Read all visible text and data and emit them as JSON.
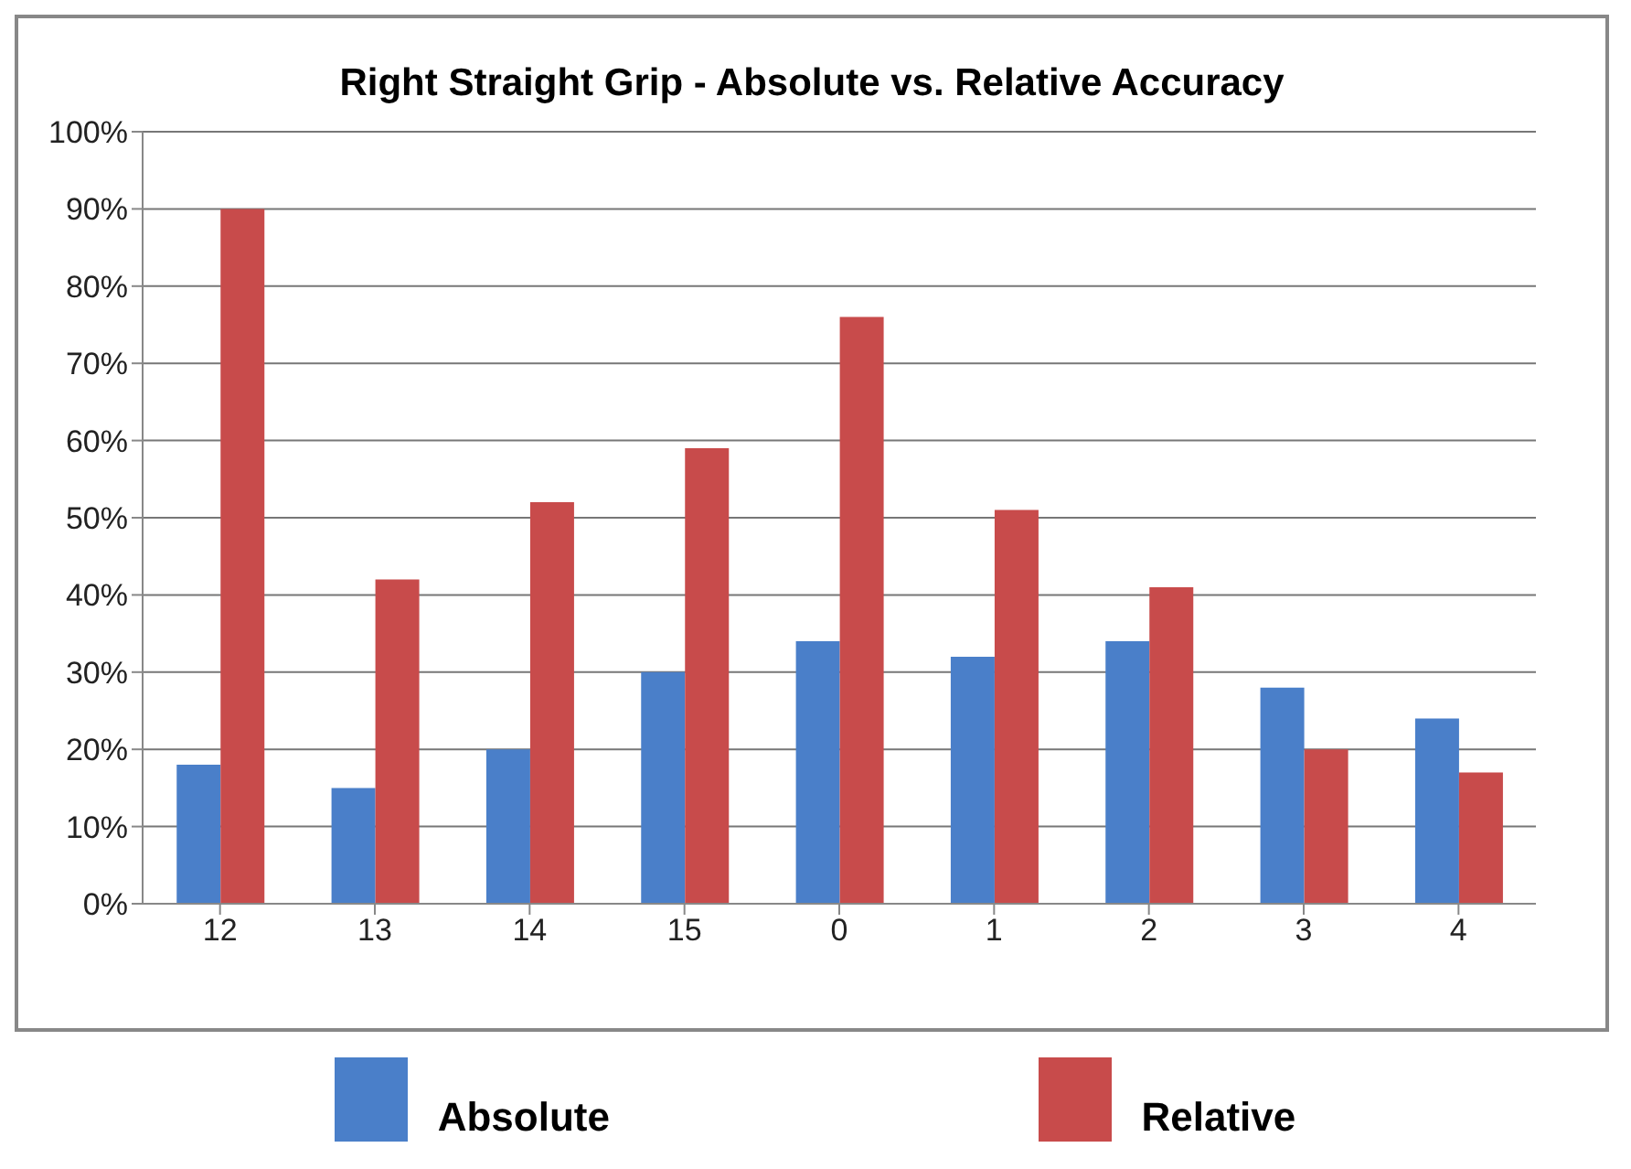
{
  "chart_data": {
    "type": "bar",
    "title": "Right Straight  Grip  -  Absolute vs. Relative Accuracy",
    "categories": [
      "12",
      "13",
      "14",
      "15",
      "0",
      "1",
      "2",
      "3",
      "4"
    ],
    "series": [
      {
        "name": "Absolute",
        "color": "#4a7fc9",
        "values": [
          18,
          15,
          20,
          30,
          34,
          32,
          34,
          28,
          24
        ]
      },
      {
        "name": "Relative",
        "color": "#c84b4b",
        "values": [
          90,
          42,
          52,
          59,
          76,
          51,
          41,
          20,
          17
        ]
      }
    ],
    "ylim": [
      0,
      100
    ],
    "yticks": [
      {
        "value": 0,
        "label": "0%"
      },
      {
        "value": 10,
        "label": "10%"
      },
      {
        "value": 20,
        "label": "20%"
      },
      {
        "value": 30,
        "label": "30%"
      },
      {
        "value": 40,
        "label": "40%"
      },
      {
        "value": 50,
        "label": "50%"
      },
      {
        "value": 60,
        "label": "60%"
      },
      {
        "value": 70,
        "label": "70%"
      },
      {
        "value": 80,
        "label": "80%"
      },
      {
        "value": 90,
        "label": "90%"
      },
      {
        "value": 100,
        "label": "100%"
      }
    ],
    "grid": "y",
    "legend": "bottom"
  }
}
